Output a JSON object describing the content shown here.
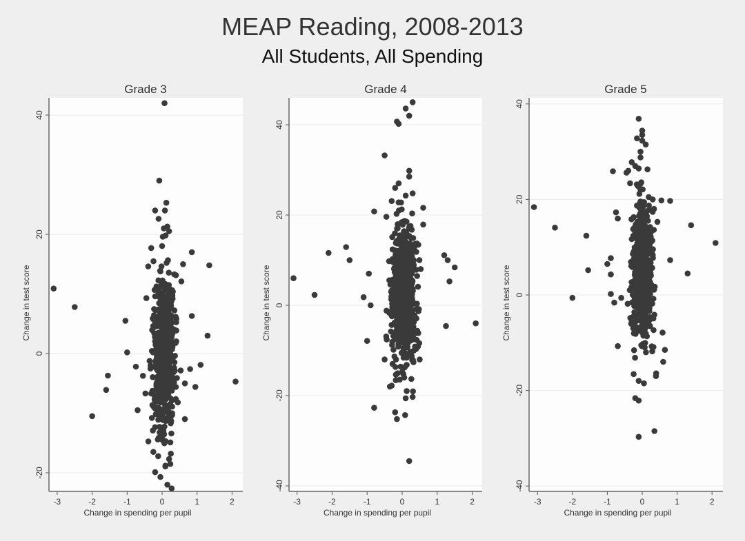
{
  "title": "MEAP Reading, 2008-2013",
  "subtitle": "All Students, All Spending",
  "chart_data": [
    {
      "type": "scatter",
      "title": "Grade 3",
      "xlabel": "Change in spending per pupil",
      "ylabel": "Change in test score",
      "xticks": [
        -3,
        -2,
        -1,
        0,
        1,
        2
      ],
      "yticks": [
        -20,
        0,
        20,
        40
      ],
      "xlim": [
        -3.2,
        2.3
      ],
      "ylim": [
        -23,
        42.5
      ],
      "grid": true,
      "marker_color": "#3a3a3a",
      "cluster": {
        "x_mean": 0.05,
        "x_sd": 0.14,
        "y_mean": 0,
        "y_sd": 6.5,
        "n": 700
      },
      "outliers": [
        [
          0.07,
          42
        ],
        [
          -0.08,
          29
        ],
        [
          0.12,
          25.3
        ],
        [
          -0.2,
          24
        ],
        [
          0.08,
          24
        ],
        [
          -0.1,
          22.6
        ],
        [
          0.15,
          21.3
        ],
        [
          0.05,
          21
        ],
        [
          0.02,
          19.6
        ],
        [
          0.1,
          19.8
        ],
        [
          0.85,
          17
        ],
        [
          1.35,
          14.8
        ],
        [
          0.6,
          15
        ],
        [
          -0.45,
          9.3
        ],
        [
          1.3,
          3
        ],
        [
          -1.05,
          5.5
        ],
        [
          -1.0,
          0.2
        ],
        [
          -0.75,
          -2.2
        ],
        [
          -1.55,
          -3.7
        ],
        [
          -1.6,
          -6.1
        ],
        [
          2.1,
          -4.7
        ],
        [
          0.95,
          -5.6
        ],
        [
          1.1,
          -1.9
        ],
        [
          -2.0,
          -10.5
        ],
        [
          -0.7,
          -9.5
        ],
        [
          0.65,
          -11.0
        ],
        [
          -0.25,
          -16.5
        ],
        [
          0.1,
          -14.7
        ],
        [
          -0.2,
          -19.9
        ],
        [
          0.2,
          -17.7
        ],
        [
          0.25,
          -16.8
        ],
        [
          -0.05,
          -20.7
        ],
        [
          0.15,
          -22
        ],
        [
          -3.1,
          10.9
        ],
        [
          -2.5,
          7.8
        ],
        [
          0.55,
          12.1
        ],
        [
          0.85,
          6.3
        ],
        [
          0.8,
          -2.6
        ],
        [
          0.45,
          -8.2
        ],
        [
          0.65,
          -5.0
        ]
      ]
    },
    {
      "type": "scatter",
      "title": "Grade 4",
      "xlabel": "Change in spending per pupil",
      "ylabel": "Change in test score",
      "xticks": [
        -3,
        -2,
        -1,
        0,
        1,
        2
      ],
      "yticks": [
        -40,
        -20,
        0,
        20,
        40
      ],
      "xlim": [
        -3.2,
        2.3
      ],
      "ylim": [
        -41,
        46
      ],
      "grid": true,
      "marker_color": "#3a3a3a",
      "cluster": {
        "x_mean": 0.05,
        "x_sd": 0.15,
        "y_mean": 2,
        "y_sd": 7,
        "n": 750
      },
      "outliers": [
        [
          0.3,
          45
        ],
        [
          0.1,
          43.6
        ],
        [
          0.2,
          42
        ],
        [
          -0.15,
          40.7
        ],
        [
          -0.1,
          40.2
        ],
        [
          -0.5,
          33.2
        ],
        [
          0.2,
          29.8
        ],
        [
          0.2,
          28.5
        ],
        [
          -0.1,
          27
        ],
        [
          -0.2,
          26
        ],
        [
          0.3,
          24.8
        ],
        [
          0.1,
          24.3
        ],
        [
          -0.3,
          23.1
        ],
        [
          -0.1,
          22.8
        ],
        [
          -0.8,
          20.8
        ],
        [
          0.6,
          21.6
        ],
        [
          0.6,
          17.9
        ],
        [
          -0.45,
          19.6
        ],
        [
          1.2,
          11.1
        ],
        [
          1.3,
          10
        ],
        [
          1.5,
          8.4
        ],
        [
          1.35,
          5.3
        ],
        [
          -2.1,
          11.6
        ],
        [
          -1.6,
          12.9
        ],
        [
          -1.5,
          10
        ],
        [
          -3.1,
          6
        ],
        [
          -2.5,
          2.3
        ],
        [
          -1.1,
          1.8
        ],
        [
          -0.9,
          0
        ],
        [
          -0.95,
          7.0
        ],
        [
          -1.0,
          -7.9
        ],
        [
          1.25,
          -4.6
        ],
        [
          2.1,
          -4
        ],
        [
          -0.5,
          -12
        ],
        [
          -0.8,
          -22.7
        ],
        [
          -0.2,
          -23.7
        ],
        [
          -0.15,
          -25.2
        ],
        [
          0.2,
          -34.5
        ],
        [
          0.1,
          -20.6
        ],
        [
          0.3,
          -20.3
        ],
        [
          -0.35,
          -18.0
        ],
        [
          0.5,
          -12
        ]
      ]
    },
    {
      "type": "scatter",
      "title": "Grade 5",
      "xlabel": "Change in spending per pupil",
      "ylabel": "Change in test score",
      "xticks": [
        -3,
        -2,
        -1,
        0,
        1,
        2
      ],
      "yticks": [
        -40,
        -20,
        0,
        20,
        40
      ],
      "xlim": [
        -3.2,
        2.3
      ],
      "ylim": [
        -40.5,
        41
      ],
      "grid": true,
      "marker_color": "#3a3a3a",
      "cluster": {
        "x_mean": 0.02,
        "x_sd": 0.13,
        "y_mean": 5,
        "y_sd": 6.5,
        "n": 720
      },
      "outliers": [
        [
          -0.1,
          36.9
        ],
        [
          0.0,
          34.4
        ],
        [
          0.0,
          33.5
        ],
        [
          -0.15,
          32.8
        ],
        [
          0.0,
          32.3
        ],
        [
          0.1,
          31.5
        ],
        [
          -0.05,
          30
        ],
        [
          -0.05,
          28.8
        ],
        [
          -0.3,
          27.8
        ],
        [
          -0.2,
          27
        ],
        [
          -0.1,
          26.5
        ],
        [
          -0.4,
          26
        ],
        [
          0.15,
          26.3
        ],
        [
          -0.84,
          25.9
        ],
        [
          -0.45,
          25.6
        ],
        [
          0.3,
          20
        ],
        [
          0.55,
          19.8
        ],
        [
          0.8,
          19.7
        ],
        [
          0.3,
          17.4
        ],
        [
          -0.75,
          17.3
        ],
        [
          -0.7,
          16
        ],
        [
          1.4,
          14.6
        ],
        [
          2.1,
          10.9
        ],
        [
          1.3,
          4.5
        ],
        [
          -3.1,
          18.4
        ],
        [
          -2.5,
          14.1
        ],
        [
          -1.6,
          12.4
        ],
        [
          -1.55,
          5.2
        ],
        [
          -0.9,
          7.7
        ],
        [
          -1.0,
          6.5
        ],
        [
          -0.9,
          4.3
        ],
        [
          -2.0,
          -0.6
        ],
        [
          -0.9,
          0.2
        ],
        [
          -0.6,
          -0.6
        ],
        [
          -0.8,
          -1.6
        ],
        [
          0.6,
          -14
        ],
        [
          -0.7,
          -10.7
        ],
        [
          0.65,
          -11.5
        ],
        [
          0.4,
          -16.4
        ],
        [
          -0.1,
          -18
        ],
        [
          0.05,
          -18.5
        ],
        [
          -0.2,
          -21.6
        ],
        [
          -0.1,
          -22.1
        ],
        [
          0.35,
          -28.5
        ],
        [
          -0.1,
          -29.7
        ],
        [
          0.8,
          7.3
        ]
      ]
    }
  ]
}
